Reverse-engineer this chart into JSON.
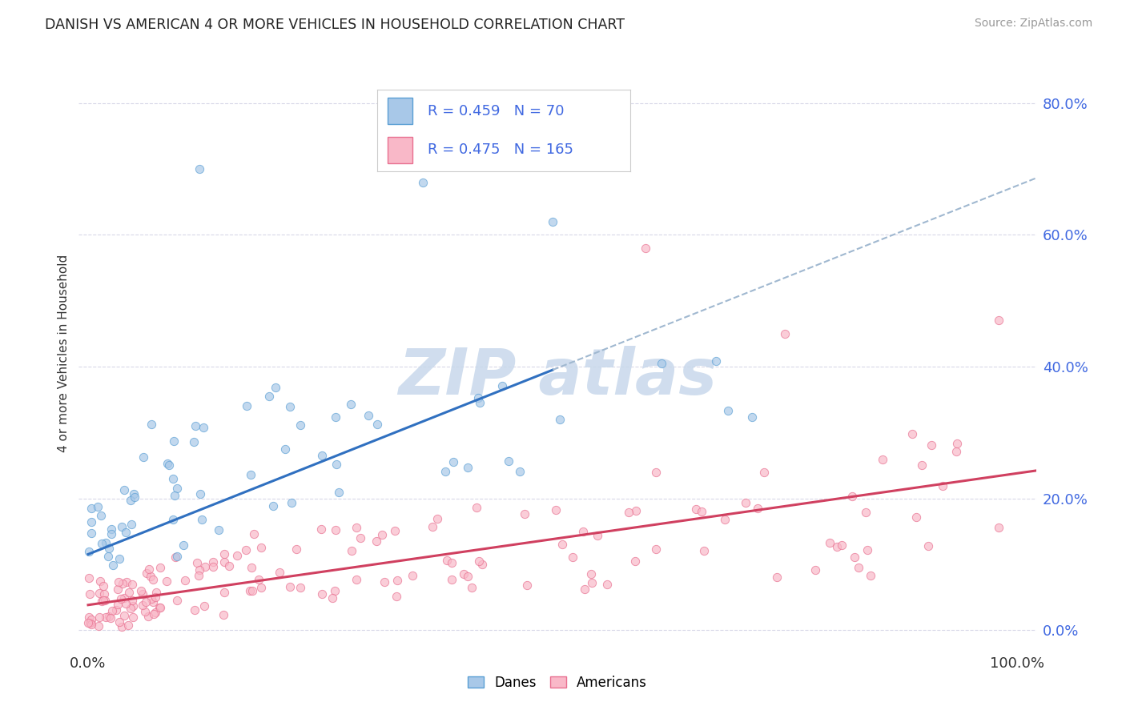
{
  "title": "DANISH VS AMERICAN 4 OR MORE VEHICLES IN HOUSEHOLD CORRELATION CHART",
  "source": "Source: ZipAtlas.com",
  "ylabel": "4 or more Vehicles in Household",
  "xlim": [
    -0.01,
    1.02
  ],
  "ylim": [
    -0.03,
    0.87
  ],
  "yticks": [
    0.0,
    0.2,
    0.4,
    0.6,
    0.8
  ],
  "ytick_labels": [
    "0.0%",
    "20.0%",
    "40.0%",
    "60.0%",
    "80.0%"
  ],
  "xticks": [
    0.0,
    1.0
  ],
  "xtick_labels": [
    "0.0%",
    "100.0%"
  ],
  "danes_R": 0.459,
  "danes_N": 70,
  "americans_R": 0.475,
  "americans_N": 165,
  "danes_color": "#a8c8e8",
  "danes_edge_color": "#5a9fd4",
  "americans_color": "#f9b8c8",
  "americans_edge_color": "#e87090",
  "danes_line_color": "#3070c0",
  "americans_line_color": "#d04060",
  "trendline_dashed_color": "#a0b8d0",
  "tick_label_color": "#4169E1",
  "background_color": "#ffffff",
  "grid_color": "#d8d8e8",
  "legend_box_color": "#4169E1",
  "watermark_color": "#c8d8eb"
}
